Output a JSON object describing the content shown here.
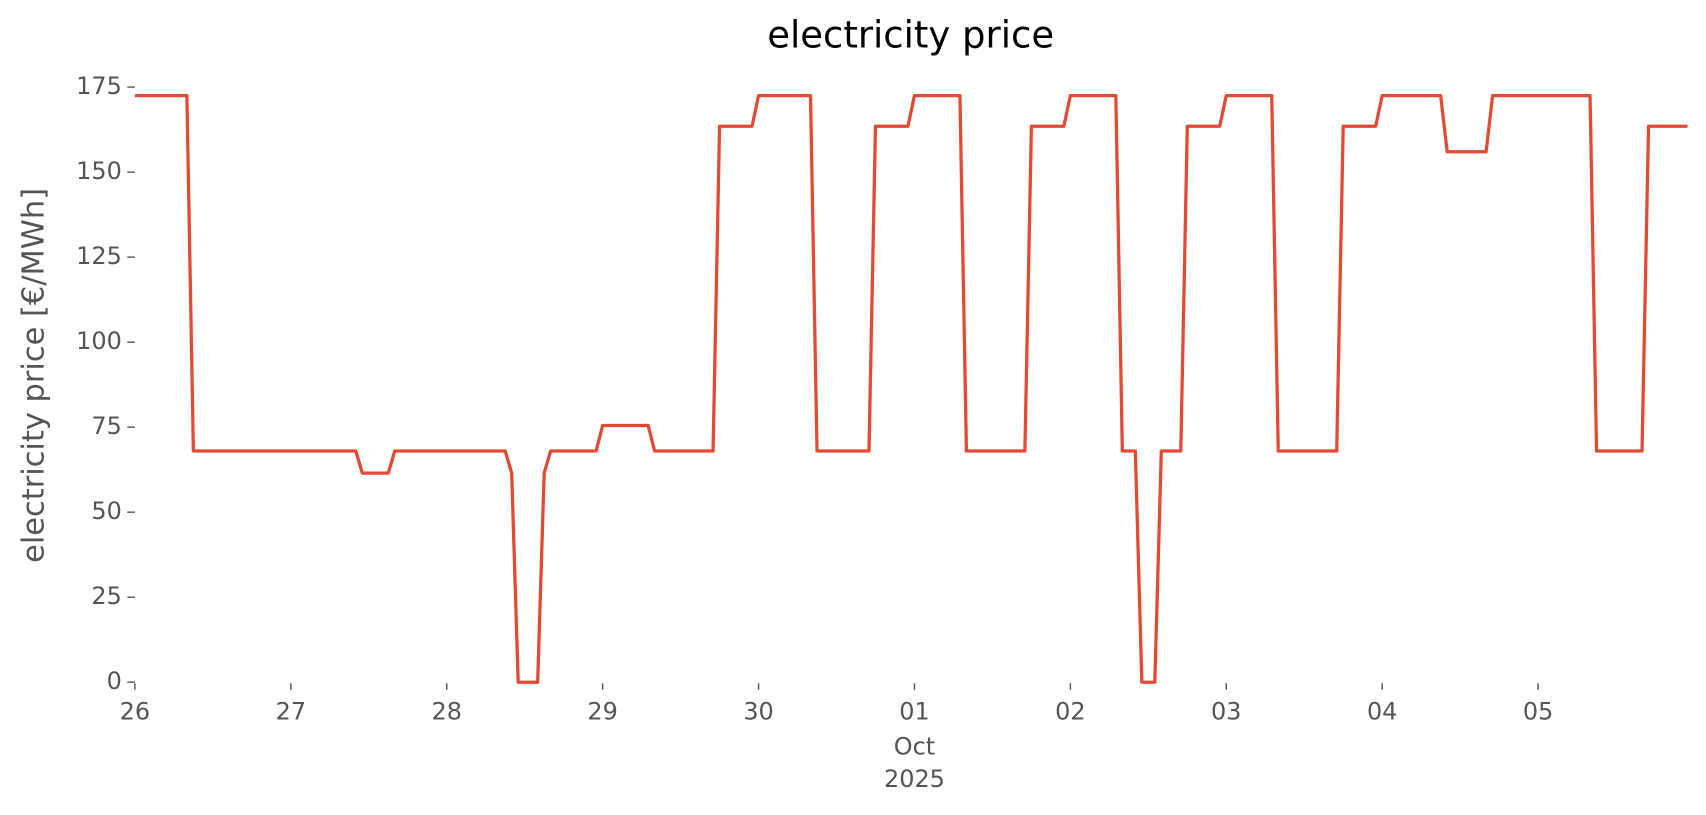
{
  "chart_data": {
    "type": "line",
    "title": "electricity price",
    "y_label": "electricity price [€/MWh]",
    "x": [
      "2025-09-26T00:00",
      "2025-09-26T08:00",
      "2025-09-26T09:00",
      "2025-09-27T10:00",
      "2025-09-27T11:00",
      "2025-09-27T15:00",
      "2025-09-27T16:00",
      "2025-09-28T09:00",
      "2025-09-28T10:00",
      "2025-09-28T11:00",
      "2025-09-28T14:00",
      "2025-09-28T15:00",
      "2025-09-28T16:00",
      "2025-09-28T23:00",
      "2025-09-29T00:00",
      "2025-09-29T07:00",
      "2025-09-29T08:00",
      "2025-09-29T17:00",
      "2025-09-29T18:00",
      "2025-09-29T23:00",
      "2025-09-30T00:00",
      "2025-09-30T08:00",
      "2025-09-30T09:00",
      "2025-09-30T17:00",
      "2025-09-30T18:00",
      "2025-09-30T23:00",
      "2025-10-01T00:00",
      "2025-10-01T07:00",
      "2025-10-01T08:00",
      "2025-10-01T17:00",
      "2025-10-01T18:00",
      "2025-10-01T23:00",
      "2025-10-02T00:00",
      "2025-10-02T07:00",
      "2025-10-02T08:00",
      "2025-10-02T10:00",
      "2025-10-02T11:00",
      "2025-10-02T13:00",
      "2025-10-02T14:00",
      "2025-10-02T17:00",
      "2025-10-02T18:00",
      "2025-10-02T23:00",
      "2025-10-03T00:00",
      "2025-10-03T07:00",
      "2025-10-03T08:00",
      "2025-10-03T17:00",
      "2025-10-03T18:00",
      "2025-10-03T23:00",
      "2025-10-04T00:00",
      "2025-10-04T09:00",
      "2025-10-04T10:00",
      "2025-10-04T16:00",
      "2025-10-04T17:00",
      "2025-10-05T08:00",
      "2025-10-05T09:00",
      "2025-10-05T16:00",
      "2025-10-05T17:00",
      "2025-10-05T23:00"
    ],
    "series": [
      {
        "name": "electricity price",
        "color": "#E24A33",
        "values": [
          172.5,
          172.5,
          68,
          68,
          61.5,
          61.5,
          68,
          68,
          61.5,
          0,
          0,
          61.5,
          68,
          68,
          75.5,
          75.5,
          68,
          68,
          163.5,
          163.5,
          172.5,
          172.5,
          68,
          68,
          163.5,
          163.5,
          172.5,
          172.5,
          68,
          68,
          163.5,
          163.5,
          172.5,
          172.5,
          68,
          68,
          0,
          0,
          68,
          68,
          163.5,
          163.5,
          172.5,
          172.5,
          68,
          68,
          163.5,
          163.5,
          172.5,
          172.5,
          156,
          156,
          172.5,
          172.5,
          68,
          68,
          163.5,
          163.5
        ]
      }
    ],
    "xlim": [
      "2025-09-26T00:00",
      "2025-10-05T23:00"
    ],
    "xticks": [
      {
        "value": "2025-09-26T00:00",
        "label": "26"
      },
      {
        "value": "2025-09-27T00:00",
        "label": "27"
      },
      {
        "value": "2025-09-28T00:00",
        "label": "28"
      },
      {
        "value": "2025-09-29T00:00",
        "label": "29"
      },
      {
        "value": "2025-09-30T00:00",
        "label": "30"
      },
      {
        "value": "2025-10-01T00:00",
        "label": "01"
      },
      {
        "value": "2025-10-02T00:00",
        "label": "02"
      },
      {
        "value": "2025-10-03T00:00",
        "label": "03"
      },
      {
        "value": "2025-10-04T00:00",
        "label": "04"
      },
      {
        "value": "2025-10-05T00:00",
        "label": "05"
      }
    ],
    "x_month_label": "Oct",
    "x_year_label": "2025",
    "ylim": [
      0,
      175
    ],
    "yticks": [
      0,
      25,
      50,
      75,
      100,
      125,
      150,
      175
    ],
    "grid": false
  }
}
